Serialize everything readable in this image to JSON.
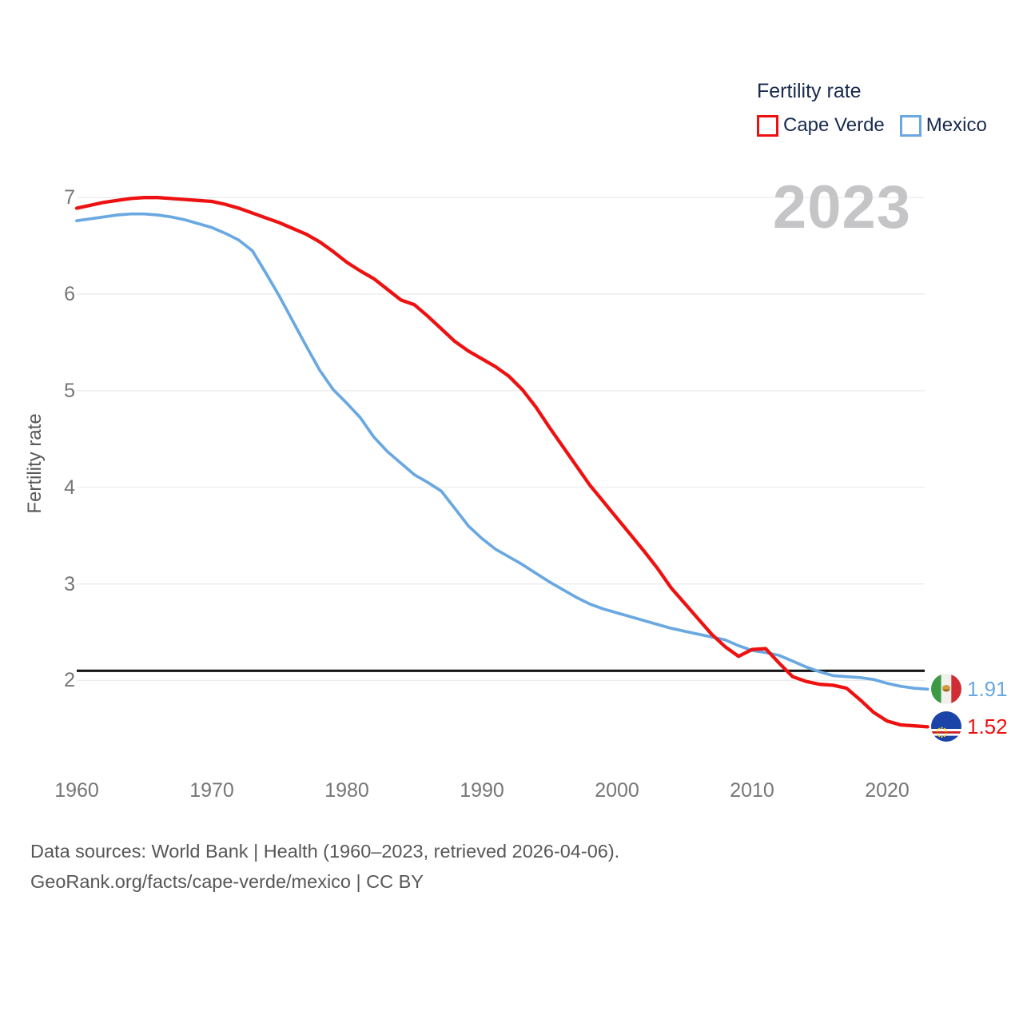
{
  "legend": {
    "title": "Fertility rate",
    "items": [
      {
        "label": "Cape Verde",
        "color": "#ee1111"
      },
      {
        "label": "Mexico",
        "color": "#69a8e0"
      }
    ]
  },
  "watermark_year": "2023",
  "chart_data": {
    "type": "line",
    "title": "Fertility rate",
    "ylabel": "Fertility rate",
    "xlabel": "",
    "grid": true,
    "legend_position": "top-right",
    "xlim": [
      1960,
      2023
    ],
    "ylim": [
      1.4,
      7.15
    ],
    "xticks": [
      1960,
      1970,
      1980,
      1990,
      2000,
      2010,
      2020
    ],
    "yticks": [
      2,
      3,
      4,
      5,
      6,
      7
    ],
    "reference_line": {
      "y": 2.1,
      "color": "#141414"
    },
    "x": [
      1960,
      1961,
      1962,
      1963,
      1964,
      1965,
      1966,
      1967,
      1968,
      1969,
      1970,
      1971,
      1972,
      1973,
      1974,
      1975,
      1976,
      1977,
      1978,
      1979,
      1980,
      1981,
      1982,
      1983,
      1984,
      1985,
      1986,
      1987,
      1988,
      1989,
      1990,
      1991,
      1992,
      1993,
      1994,
      1995,
      1996,
      1997,
      1998,
      1999,
      2000,
      2001,
      2002,
      2003,
      2004,
      2005,
      2006,
      2007,
      2008,
      2009,
      2010,
      2011,
      2012,
      2013,
      2014,
      2015,
      2016,
      2017,
      2018,
      2019,
      2020,
      2021,
      2022,
      2023
    ],
    "series": [
      {
        "name": "Cape Verde",
        "key": "cape-verde",
        "color": "#ee1111",
        "end_label": "1.52",
        "values": [
          6.89,
          6.92,
          6.95,
          6.97,
          6.99,
          7.0,
          7.0,
          6.99,
          6.98,
          6.97,
          6.96,
          6.93,
          6.89,
          6.84,
          6.79,
          6.74,
          6.68,
          6.62,
          6.54,
          6.44,
          6.33,
          6.24,
          6.16,
          6.05,
          5.94,
          5.89,
          5.77,
          5.64,
          5.51,
          5.41,
          5.33,
          5.25,
          5.15,
          5.01,
          4.83,
          4.62,
          4.42,
          4.22,
          4.02,
          3.85,
          3.68,
          3.51,
          3.34,
          3.16,
          2.96,
          2.8,
          2.64,
          2.48,
          2.35,
          2.25,
          2.32,
          2.33,
          2.18,
          2.04,
          1.99,
          1.96,
          1.95,
          1.92,
          1.8,
          1.67,
          1.58,
          1.54,
          1.53,
          1.52
        ]
      },
      {
        "name": "Mexico",
        "key": "mexico",
        "color": "#69a8e0",
        "end_label": "1.91",
        "values": [
          6.76,
          6.78,
          6.8,
          6.82,
          6.83,
          6.83,
          6.82,
          6.8,
          6.77,
          6.73,
          6.69,
          6.63,
          6.56,
          6.45,
          6.22,
          5.98,
          5.72,
          5.46,
          5.21,
          5.01,
          4.87,
          4.72,
          4.52,
          4.37,
          4.25,
          4.13,
          4.05,
          3.96,
          3.78,
          3.6,
          3.47,
          3.36,
          3.28,
          3.2,
          3.11,
          3.02,
          2.94,
          2.86,
          2.79,
          2.74,
          2.7,
          2.66,
          2.62,
          2.58,
          2.54,
          2.51,
          2.48,
          2.45,
          2.42,
          2.36,
          2.31,
          2.29,
          2.26,
          2.2,
          2.14,
          2.09,
          2.05,
          2.04,
          2.03,
          2.01,
          1.97,
          1.94,
          1.92,
          1.91
        ]
      }
    ]
  },
  "footer": {
    "line1": "Data sources: World Bank | Health (1960–2023, retrieved 2026-04-06).",
    "line2": "GeoRank.org/facts/cape-verde/mexico | CC BY"
  }
}
